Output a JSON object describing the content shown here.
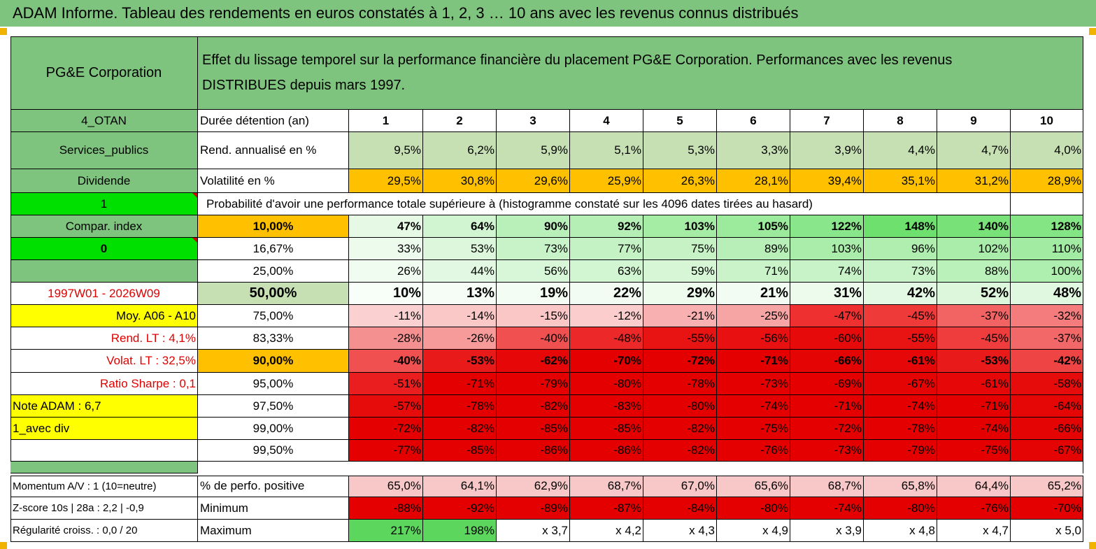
{
  "title": "ADAM Informe. Tableau des rendements en euros constatés à 1, 2, 3 … 10 ans avec les revenus connus distribués",
  "header": {
    "name": "PG&E Corporation",
    "description": "Effet du lissage temporel sur la performance financière du placement PG&E Corporation. Performances avec les revenus DISTRIBUES depuis mars 1997."
  },
  "left": {
    "code": "4_OTAN",
    "sector": "Services_publics",
    "type": "Dividende",
    "flag1": "1",
    "compar": "Compar. index",
    "flag2": "0",
    "period": "1997W01 - 2026W09",
    "moy": "Moy. A06 - A10",
    "rend_lt": "Rend. LT :   4,1%",
    "volat_lt": "Volat. LT :   32,5%",
    "sharpe": "Ratio Sharpe :    0,1",
    "note": "Note ADAM : 6,7",
    "avec_div": "1_avec div",
    "momentum": "Momentum A/V : 1 (10=neutre)",
    "zscore": "Z-score 10s | 28a : 2,2 | -0,9",
    "regularite": "Régularité croiss. : 0,0 / 20"
  },
  "labels": {
    "duree": "Durée détention (an)",
    "rend": "Rend. annualisé en %",
    "vol": "Volatilité en %",
    "proba": "Probabilité d'avoir une performance totale supérieure à (histogramme constaté sur les 4096 dates tirées au hasard)",
    "pos": "% de perfo. positive",
    "min": "Minimum",
    "max": "Maximum"
  },
  "years": [
    "1",
    "2",
    "3",
    "4",
    "5",
    "6",
    "7",
    "8",
    "9",
    "10"
  ],
  "rend": [
    "9,5%",
    "6,2%",
    "5,9%",
    "5,1%",
    "5,3%",
    "3,3%",
    "3,9%",
    "4,4%",
    "4,7%",
    "4,0%"
  ],
  "vol": [
    "29,5%",
    "30,8%",
    "29,6%",
    "25,9%",
    "26,3%",
    "28,1%",
    "39,4%",
    "35,1%",
    "31,2%",
    "28,9%"
  ],
  "prob_rows": [
    {
      "p": "10,00%",
      "v": [
        "47%",
        "64%",
        "90%",
        "92%",
        "103%",
        "105%",
        "122%",
        "148%",
        "140%",
        "128%"
      ],
      "c": [
        "#e5f9e5",
        "#d0f5d0",
        "#b9f0b9",
        "#b5efb5",
        "#a5eca5",
        "#9cea9c",
        "#8ae68a",
        "#6ee06e",
        "#78e278",
        "#84e584"
      ]
    },
    {
      "p": "16,67%",
      "v": [
        "33%",
        "53%",
        "73%",
        "77%",
        "75%",
        "89%",
        "103%",
        "96%",
        "102%",
        "110%"
      ],
      "c": [
        "#ecfbec",
        "#dcf7dc",
        "#c8f3c8",
        "#c4f2c4",
        "#c6f2c6",
        "#b8efb8",
        "#aaedaa",
        "#b0eeb0",
        "#aaedaa",
        "#a2eba2"
      ]
    },
    {
      "p": "25,00%",
      "v": [
        "26%",
        "44%",
        "56%",
        "63%",
        "59%",
        "71%",
        "74%",
        "73%",
        "88%",
        "100%"
      ],
      "c": [
        "#f0fcf0",
        "#e2f8e2",
        "#d8f6d8",
        "#d2f5d2",
        "#d6f6d6",
        "#caf3ca",
        "#c8f3c8",
        "#c8f3c8",
        "#baf0ba",
        "#aeeeae"
      ]
    },
    {
      "p": "50,00%",
      "v": [
        "10%",
        "13%",
        "19%",
        "22%",
        "29%",
        "21%",
        "31%",
        "42%",
        "52%",
        "48%"
      ],
      "c": [
        "#f8fef8",
        "#f6fdf6",
        "#f3fdf3",
        "#f2fcf2",
        "#eefcee",
        "#f2fcf2",
        "#ecfbec",
        "#e4f9e4",
        "#ddf7dd",
        "#e0f8e0"
      ]
    },
    {
      "p": "75,00%",
      "v": [
        "-11%",
        "-14%",
        "-15%",
        "-12%",
        "-21%",
        "-25%",
        "-47%",
        "-45%",
        "-37%",
        "-32%"
      ],
      "c": [
        "#fbd0d0",
        "#fbc8c8",
        "#fbc6c6",
        "#fbcdcd",
        "#f8b0b0",
        "#f6a4a4",
        "#ee3030",
        "#ef3a3a",
        "#f26464",
        "#f47c7c"
      ]
    },
    {
      "p": "83,33%",
      "v": [
        "-28%",
        "-26%",
        "-40%",
        "-48%",
        "-55%",
        "-56%",
        "-60%",
        "-55%",
        "-45%",
        "-37%"
      ],
      "c": [
        "#f59090",
        "#f69a9a",
        "#f05050",
        "#ec2828",
        "#e81414",
        "#e81010",
        "#e60a0a",
        "#e81414",
        "#ef3c3c",
        "#f26868"
      ]
    },
    {
      "p": "90,00%",
      "v": [
        "-40%",
        "-53%",
        "-62%",
        "-70%",
        "-72%",
        "-71%",
        "-66%",
        "-61%",
        "-53%",
        "-42%"
      ],
      "c": [
        "#f05050",
        "#e91a1a",
        "#e60808",
        "#e40000",
        "#e40000",
        "#e40000",
        "#e50404",
        "#e60808",
        "#e91a1a",
        "#ef4444"
      ]
    },
    {
      "p": "95,00%",
      "v": [
        "-51%",
        "-71%",
        "-79%",
        "-80%",
        "-78%",
        "-73%",
        "-69%",
        "-67%",
        "-61%",
        "-58%"
      ],
      "c": [
        "#ea1e1e",
        "#e40000",
        "#e40000",
        "#e40000",
        "#e40000",
        "#e40000",
        "#e40000",
        "#e40404",
        "#e60808",
        "#e70c0c"
      ]
    },
    {
      "p": "97,50%",
      "v": [
        "-57%",
        "-78%",
        "-82%",
        "-83%",
        "-80%",
        "-74%",
        "-71%",
        "-74%",
        "-71%",
        "-64%"
      ],
      "c": [
        "#e70c0c",
        "#e40000",
        "#e40000",
        "#e40000",
        "#e40000",
        "#e40000",
        "#e40000",
        "#e40000",
        "#e40000",
        "#e50606"
      ]
    },
    {
      "p": "99,00%",
      "v": [
        "-72%",
        "-82%",
        "-85%",
        "-85%",
        "-82%",
        "-75%",
        "-72%",
        "-78%",
        "-74%",
        "-66%"
      ],
      "c": [
        "#e40000",
        "#e40000",
        "#e40000",
        "#e40000",
        "#e40000",
        "#e40000",
        "#e40000",
        "#e40000",
        "#e40000",
        "#e50404"
      ]
    },
    {
      "p": "99,50%",
      "v": [
        "-77%",
        "-85%",
        "-86%",
        "-86%",
        "-82%",
        "-76%",
        "-73%",
        "-79%",
        "-75%",
        "-67%"
      ],
      "c": [
        "#e40000",
        "#e40000",
        "#e40000",
        "#e40000",
        "#e40000",
        "#e40000",
        "#e40000",
        "#e40000",
        "#e40000",
        "#e40404"
      ]
    }
  ],
  "pos": [
    "65,0%",
    "64,1%",
    "62,9%",
    "68,7%",
    "67,0%",
    "65,6%",
    "68,7%",
    "65,8%",
    "64,4%",
    "65,2%"
  ],
  "min": [
    "-88%",
    "-92%",
    "-89%",
    "-87%",
    "-84%",
    "-80%",
    "-74%",
    "-80%",
    "-76%",
    "-70%"
  ],
  "max": [
    "217%",
    "198%",
    "x 3,7",
    "x 4,2",
    "x 4,3",
    "x 4,9",
    "x 3,9",
    "x 4,8",
    "x 4,7",
    "x 5,0"
  ],
  "colors": {
    "header_green": "#7ec47e",
    "rend_green": "#c6e0b4",
    "vol_orange": "#ffc000",
    "bright_green": "#00e000",
    "yellow": "#ffff00",
    "red_text": "#e00000",
    "pos_pink": "#f8c8c8",
    "min_red": "#e40000",
    "max_green": "#5cd65c"
  }
}
